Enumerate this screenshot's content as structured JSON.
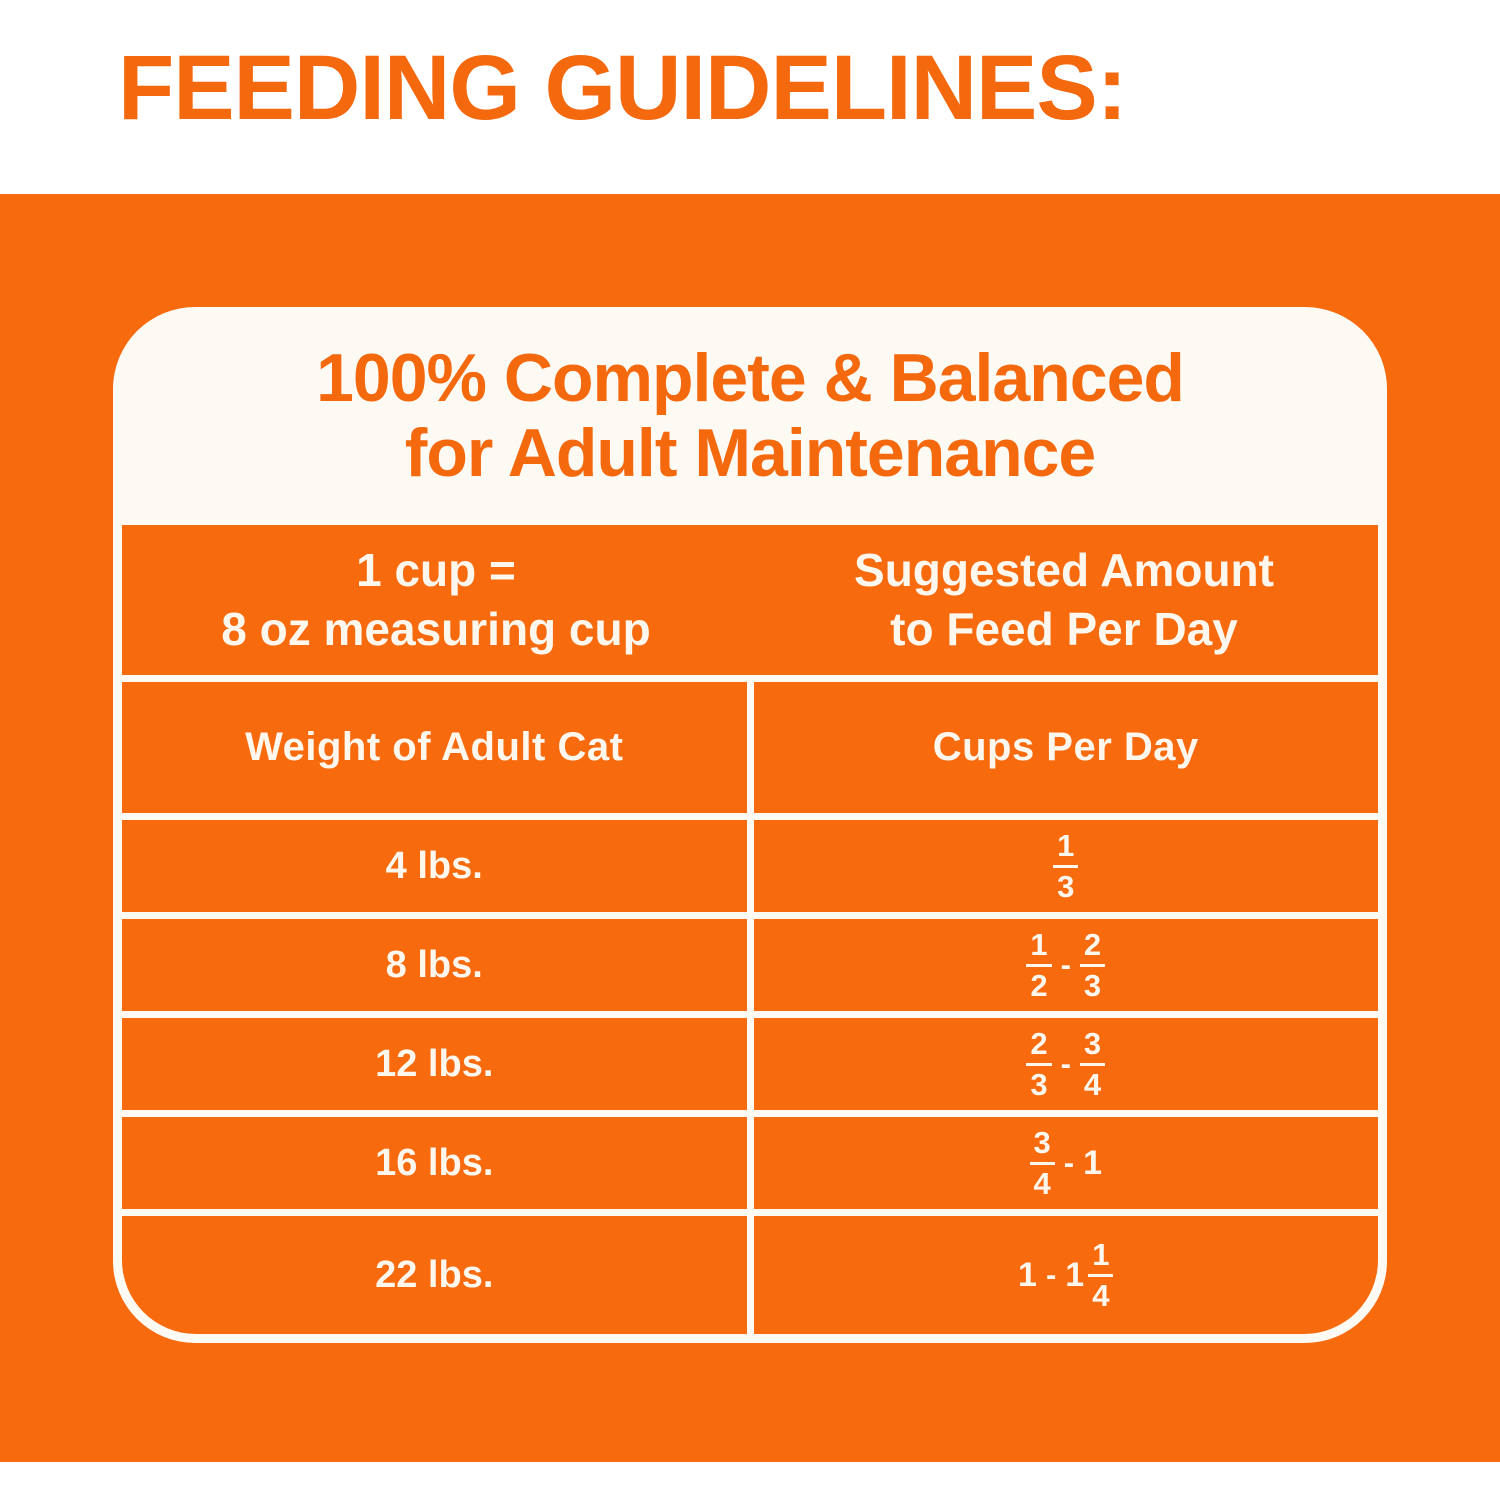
{
  "page_title": "FEEDING GUIDELINES:",
  "card": {
    "heading": {
      "line1": "100% Complete & Balanced",
      "line2": "for Adult Maintenance"
    },
    "table": {
      "header": {
        "left": {
          "line1": "1 cup =",
          "line2": "8 oz measuring cup"
        },
        "right": {
          "line1": "Suggested Amount",
          "line2": "to Feed Per Day"
        }
      },
      "columns": {
        "left": "Weight of Adult Cat",
        "right": "Cups Per Day"
      },
      "rows": [
        {
          "weight": "4 lbs.",
          "cups": "1/3"
        },
        {
          "weight": "8 lbs.",
          "cups": "1/2 - 2/3"
        },
        {
          "weight": "12 lbs.",
          "cups": "2/3 - 3/4"
        },
        {
          "weight": "16 lbs.",
          "cups": "3/4 - 1"
        },
        {
          "weight": "22 lbs.",
          "cups": "1 - 1 1/4"
        }
      ]
    }
  },
  "colors": {
    "orange": "#f76a0d",
    "accent_text_orange": "#f4680e",
    "card_white": "#fdfaf3",
    "cell_text_white": "#fdf7ee",
    "page_white": "#ffffff"
  }
}
